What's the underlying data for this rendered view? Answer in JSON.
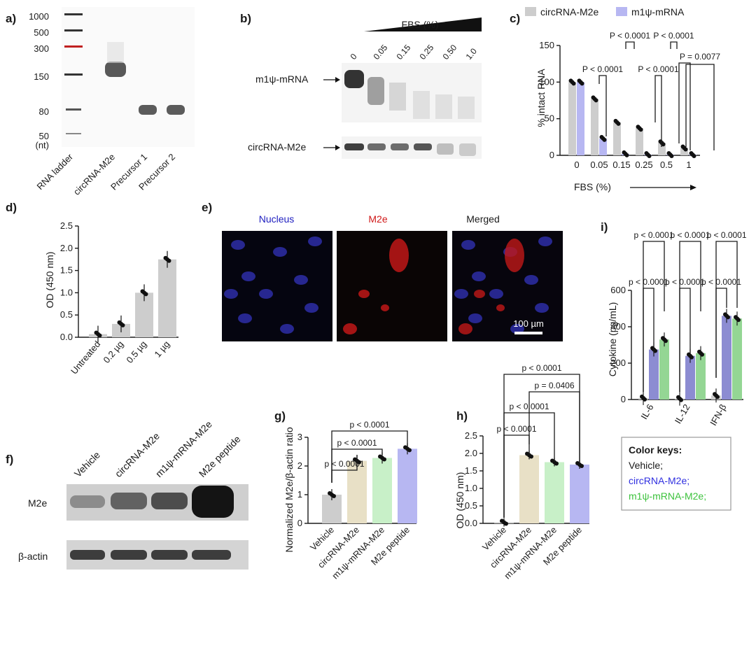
{
  "panels": {
    "a": {
      "letter": "a)",
      "ladder": [
        "1000",
        "500",
        "300",
        "150",
        "80",
        "50"
      ],
      "unit": "(nt)",
      "lanes": [
        "RNA ladder",
        "circRNA-M2e",
        "Precursor 1",
        "Precursor 2"
      ]
    },
    "b": {
      "letter": "b)",
      "title": "FBS (%)",
      "concentrations": [
        "0",
        "0.05",
        "0.15",
        "0.25",
        "0.50",
        "1.0"
      ],
      "rows": [
        "m1ψ-mRNA",
        "circRNA-M2e"
      ]
    },
    "c": {
      "letter": "c)",
      "legend": [
        "circRNA-M2e",
        "m1ψ-mRNA"
      ],
      "ylabel": "% intact RNA",
      "xlabel": "FBS (%)",
      "yticks": [
        "0",
        "50",
        "100",
        "150"
      ],
      "pvals": [
        "P < 0.0001",
        "P < 0.0001",
        "P < 0.0001",
        "P < 0.0001",
        "P < 0.0001",
        "P = 0.0077"
      ]
    },
    "d": {
      "letter": "d)",
      "ylabel": "OD (450 nm)",
      "yticks": [
        "0.0",
        "0.5",
        "1.0",
        "1.5",
        "2.0",
        "2.5"
      ]
    },
    "e": {
      "letter": "e)",
      "channels": [
        "Nucleus",
        "M2e",
        "Merged"
      ],
      "scalebar": "100 µm"
    },
    "f": {
      "letter": "f)",
      "lanes": [
        "Vehicle",
        "circRNA-M2e",
        "m1ψ-mRNA-M2e",
        "M2e peptide"
      ],
      "rows": [
        "M2e",
        "β-actin"
      ]
    },
    "g": {
      "letter": "g)",
      "ylabel": "Normalized M2e/β-actin ratio",
      "yticks": [
        "0",
        "1",
        "2",
        "3"
      ],
      "pvals": [
        "p < 0.0001",
        "p < 0.0001",
        "p < 0.0001"
      ]
    },
    "h": {
      "letter": "h)",
      "ylabel": "OD (450 nm)",
      "yticks": [
        "0.0",
        "0.5",
        "1.0",
        "1.5",
        "2.0",
        "2.5"
      ],
      "pvals": [
        "p < 0.0001",
        "p < 0.0001",
        "p = 0.0406",
        "p < 0.0001"
      ]
    },
    "i": {
      "letter": "i)",
      "ylabel": "Cytokine (pg/mL)",
      "yticks": [
        "0",
        "200",
        "400",
        "600"
      ],
      "pvals": [
        "p < 0.0001",
        "p < 0.0001",
        "p < 0.0001",
        "p < 0.0001",
        "p < 0.0001",
        "p < 0.0001"
      ]
    },
    "key": {
      "title": "Color keys:",
      "items": [
        "Vehicle;",
        "circRNA-M2e;",
        "m1ψ-mRNA-M2e;"
      ]
    }
  },
  "chart_data": [
    {
      "panel": "c",
      "type": "bar",
      "categories": [
        "0",
        "0.05",
        "0.15",
        "0.25",
        "0.5",
        "1"
      ],
      "series": [
        {
          "name": "circRNA-M2e",
          "values": [
            100,
            77,
            45,
            37,
            17,
            10
          ]
        },
        {
          "name": "m1ψ-mRNA",
          "values": [
            100,
            23,
            2,
            1,
            1,
            1
          ]
        }
      ],
      "ylabel": "% intact RNA",
      "xlabel": "FBS (%)",
      "ylim": [
        0,
        150
      ]
    },
    {
      "panel": "d",
      "type": "bar",
      "categories": [
        "Untreated",
        "0.2 µg",
        "0.5 µg",
        "1 µg"
      ],
      "values": [
        0.07,
        0.3,
        1.0,
        1.75
      ],
      "ylabel": "OD (450 nm)",
      "ylim": [
        0,
        2.5
      ]
    },
    {
      "panel": "g",
      "type": "bar",
      "categories": [
        "Vehicle",
        "circRNA-M2e",
        "m1ψ-mRNA-M2e",
        "M2e peptide"
      ],
      "values": [
        1.0,
        2.18,
        2.28,
        2.6
      ],
      "ylabel": "Normalized M2e/β-actin ratio",
      "ylim": [
        0,
        3
      ]
    },
    {
      "panel": "h",
      "type": "bar",
      "categories": [
        "Vehicle",
        "circRNA-M2e",
        "m1ψ-mRNA-M2e",
        "M2e peptide"
      ],
      "values": [
        0.03,
        1.95,
        1.75,
        1.68
      ],
      "ylabel": "OD (450 nm)",
      "ylim": [
        0,
        2.5
      ]
    },
    {
      "panel": "i",
      "type": "bar",
      "categories": [
        "IL-6",
        "IL-12",
        "IFN-β"
      ],
      "series": [
        {
          "name": "Vehicle",
          "values": [
            8,
            5,
            22
          ]
        },
        {
          "name": "circRNA-M2e",
          "values": [
            275,
            240,
            460
          ]
        },
        {
          "name": "m1ψ-mRNA-M2e",
          "values": [
            330,
            255,
            445
          ]
        }
      ],
      "ylabel": "Cytokine (pg/mL)",
      "ylim": [
        0,
        600
      ]
    }
  ],
  "colors": {
    "gray": "#cdcdcd",
    "lavender": "#b7b7f2",
    "tan": "#e8e0c6",
    "mint": "#c8f0c8",
    "slate": "#8c8cd2",
    "green": "#94d694",
    "bluekey": "#2f2fe0",
    "greenkey": "#3cc23c"
  }
}
